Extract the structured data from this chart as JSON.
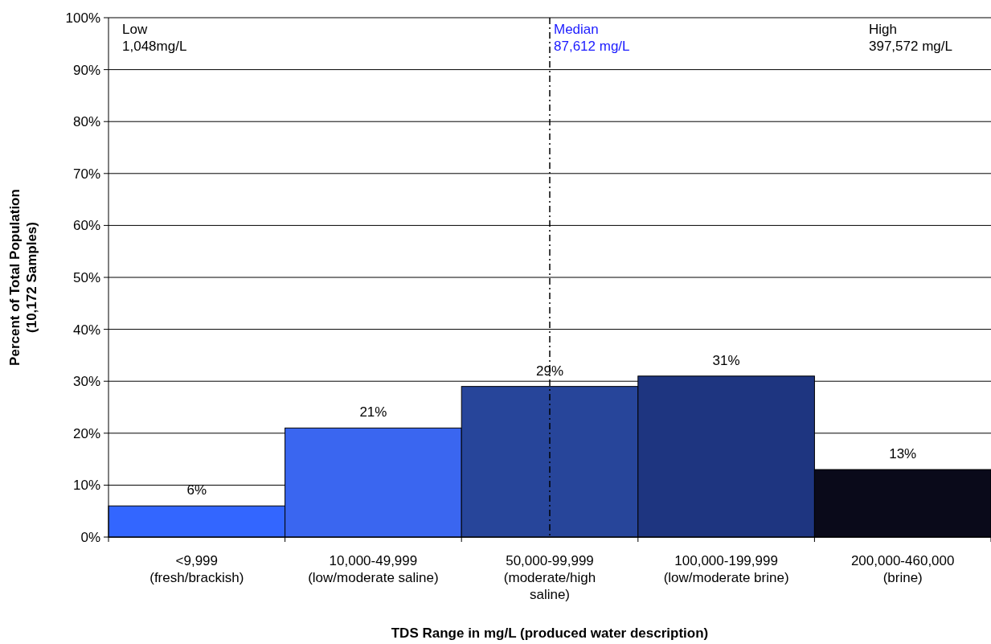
{
  "chart_data": {
    "type": "bar",
    "xlabel": "TDS Range in mg/L (produced water description)",
    "ylabel": "Percent of Total Population\n(10,172 Samples)",
    "categories": [
      "<9,999\n(fresh/brackish)",
      "10,000-49,999\n(low/moderate saline)",
      "50,000-99,999\n(moderate/high\nsaline)",
      "100,000-199,999\n(low/moderate brine)",
      "200,000-460,000\n(brine)"
    ],
    "values": [
      6,
      21,
      29,
      31,
      13
    ],
    "colors": [
      "#3366ff",
      "#3a66f0",
      "#27459a",
      "#1e3580",
      "#0a0a1a"
    ],
    "value_labels": [
      "6%",
      "21%",
      "29%",
      "31%",
      "13%"
    ],
    "ylim": [
      0,
      100
    ],
    "yticks": [
      {
        "value": 0,
        "label": "0%"
      },
      {
        "value": 10,
        "label": "10%"
      },
      {
        "value": 20,
        "label": "20%"
      },
      {
        "value": 30,
        "label": "30%"
      },
      {
        "value": 40,
        "label": "40%"
      },
      {
        "value": 50,
        "label": "50%"
      },
      {
        "value": 60,
        "label": "60%"
      },
      {
        "value": 70,
        "label": "70%"
      },
      {
        "value": 80,
        "label": "80%"
      },
      {
        "value": 90,
        "label": "90%"
      },
      {
        "value": 100,
        "label": "100%"
      }
    ],
    "grid": "y",
    "ref_lines": [
      {
        "axis": "x",
        "value": "50,000-99,999\n(moderate/high\nsaline)",
        "label": "Median\n87,612 mg/L",
        "color": "#000000",
        "line_style": "dashdot"
      }
    ],
    "annotations": [
      "Low\n1,048mg/L",
      "High\n397,572 mg/L"
    ]
  }
}
